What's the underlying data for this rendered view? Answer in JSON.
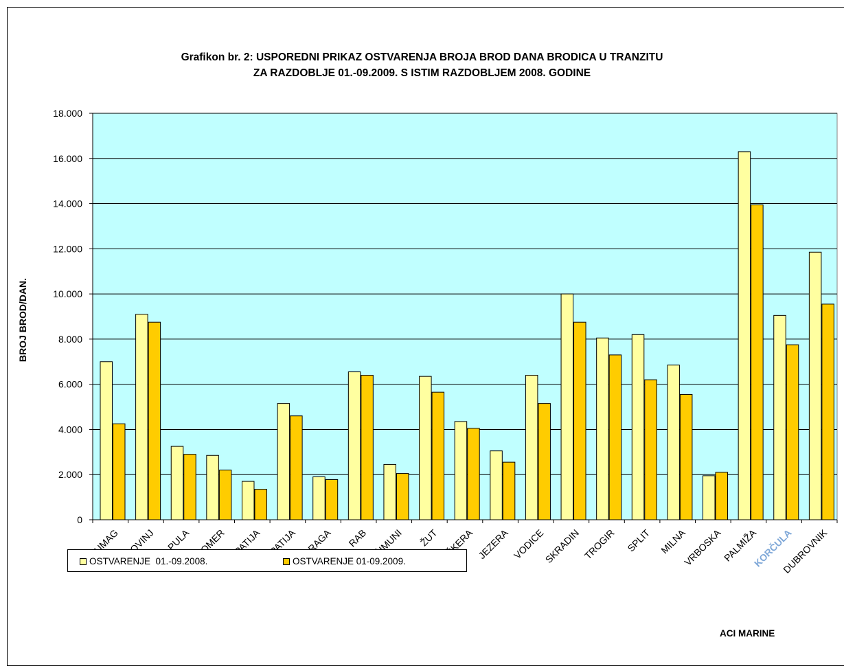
{
  "chart_data": {
    "type": "bar",
    "title": "Grafikon br. 2: USPOREDNI PRIKAZ OSTVARENJA BROJA BROD DANA BRODICA U TRANZITU",
    "subtitle": "ZA RAZDOBLJE 01.-09.2009. S ISTIM RAZDOBLJEM 2008. GODINE",
    "xlabel": "",
    "ylabel": "BROJ BROD/DAN.",
    "ylim": [
      0,
      18000
    ],
    "yticks": [
      "0",
      "2.000",
      "4.000",
      "6.000",
      "8.000",
      "10.000",
      "12.000",
      "14.000",
      "16.000",
      "18.000"
    ],
    "grid": true,
    "legend_placement": "bottom-left",
    "categories": [
      "UMAG",
      "ROVINJ",
      "PULA",
      "POMER",
      "OPATIJA",
      "OPATIJA",
      "S. DRAGA",
      "RAB",
      "ŠIMUNI",
      "ŽUT",
      "PIŠKERA",
      "JEZERA",
      "VODICE",
      "SKRADIN",
      "TROGIR",
      "SPLIT",
      "MILNA",
      "VRBOSKA",
      "PALMIŽA",
      "KORČULA",
      "DUBROVNIK"
    ],
    "series": [
      {
        "name": "OSTVARENJE  01.-09.2008.",
        "color": "#ffffa0",
        "values": [
          7000,
          9100,
          3250,
          2850,
          1700,
          5150,
          1900,
          6550,
          2450,
          6350,
          4350,
          3050,
          6400,
          10000,
          8050,
          8200,
          6850,
          1950,
          16300,
          9050,
          11850
        ]
      },
      {
        "name": "OSTVARENJE 01-09.2009.",
        "color": "#ffcc00",
        "values": [
          4250,
          8750,
          2900,
          2200,
          1350,
          4600,
          1780,
          6400,
          2050,
          5650,
          4050,
          2550,
          5150,
          8750,
          7300,
          6200,
          5550,
          2100,
          13950,
          7750,
          9550
        ]
      }
    ]
  },
  "footer": {
    "brand": "ACI MARINE"
  },
  "colors": {
    "plot_background": "#c0ffff",
    "gridline": "#000000"
  }
}
